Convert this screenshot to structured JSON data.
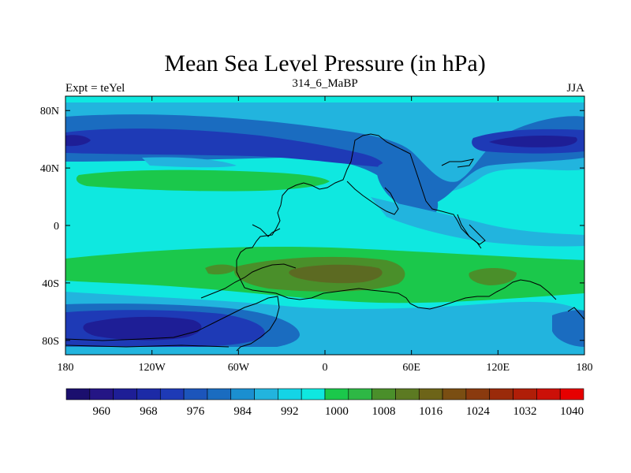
{
  "title": "Mean Sea Level Pressure (in hPa)",
  "left_label": "Expt = teYel",
  "center_label": "314_6_MaBP",
  "right_label": "JJA",
  "map": {
    "lon_range": [
      -180,
      180
    ],
    "lat_range": [
      -90,
      90
    ],
    "lat_ticks": [
      {
        "value": 80,
        "label": "80N"
      },
      {
        "value": 40,
        "label": "40N"
      },
      {
        "value": 0,
        "label": "0"
      },
      {
        "value": -40,
        "label": "40S"
      },
      {
        "value": -80,
        "label": "80S"
      }
    ],
    "lon_ticks": [
      {
        "value": -180,
        "label": "180"
      },
      {
        "value": -120,
        "label": "120W"
      },
      {
        "value": -60,
        "label": "60W"
      },
      {
        "value": 0,
        "label": "0"
      },
      {
        "value": 60,
        "label": "60E"
      },
      {
        "value": 120,
        "label": "120E"
      },
      {
        "value": 180,
        "label": "180"
      }
    ]
  },
  "colorbar": {
    "colors": [
      "#1b0f6e",
      "#241585",
      "#1e1e96",
      "#1c2aa6",
      "#1e3ab6",
      "#1c55bb",
      "#1a6cc0",
      "#1b8fd0",
      "#22b4de",
      "#14d4e6",
      "#0fe8e0",
      "#1bc84b",
      "#2eb845",
      "#4a8f2a",
      "#5c7a22",
      "#6d6418",
      "#7a4e12",
      "#8a3a0e",
      "#9a2a0a",
      "#b01e08",
      "#cc1008",
      "#e60000"
    ],
    "ticks": [
      {
        "index": 2,
        "label": "960"
      },
      {
        "index": 4,
        "label": "968"
      },
      {
        "index": 6,
        "label": "976"
      },
      {
        "index": 8,
        "label": "984"
      },
      {
        "index": 10,
        "label": "992"
      },
      {
        "index": 12,
        "label": "1000"
      },
      {
        "index": 14,
        "label": "1008"
      },
      {
        "index": 16,
        "label": "1016"
      },
      {
        "index": 18,
        "label": "1024"
      },
      {
        "index": 20,
        "label": "1032"
      },
      {
        "index": 22,
        "label": "1040"
      }
    ]
  },
  "levels": {
    "background": "#0fe8e0",
    "light_blue": "#22b4de",
    "mid_blue": "#1a6cc0",
    "deep_blue": "#1e3ab6",
    "darkest_blue": "#1e1e96",
    "green": "#1bc84b",
    "olive": "#4a8f2a",
    "brown_olive": "#5c6a22"
  }
}
